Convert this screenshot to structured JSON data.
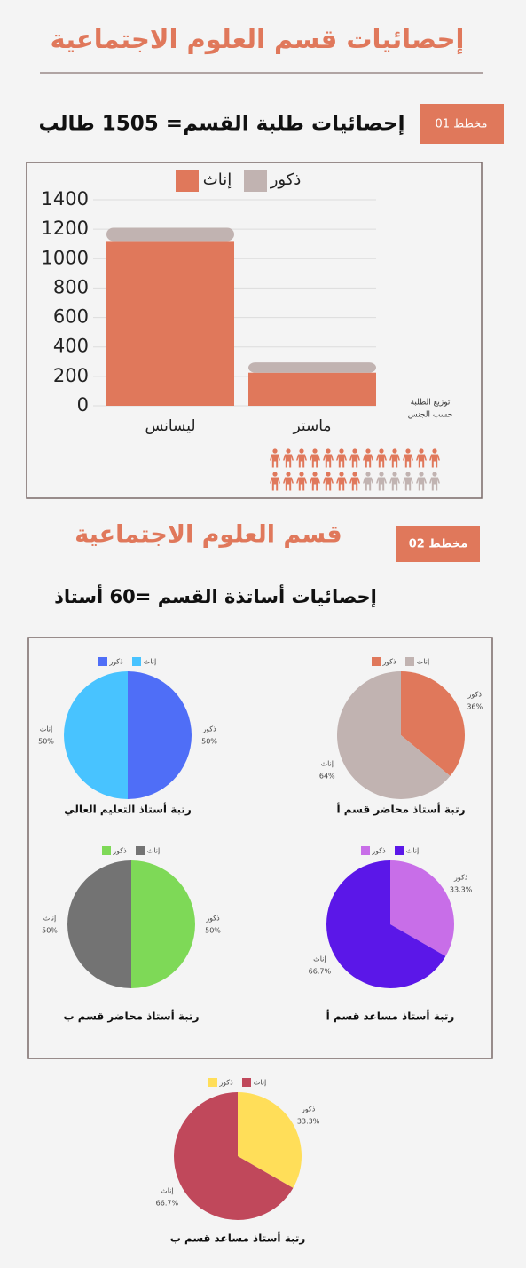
{
  "header": {
    "title": "إحصائيات قسم العلوم الاجتماعية"
  },
  "section1": {
    "badge": "مخطط 01",
    "heading": "إحصائيات طلبة القسم= 1505 طالب",
    "note": [
      "توزيع الطلبة",
      "حسب الجنس"
    ]
  },
  "section2": {
    "badge": "مخطط 02",
    "title": "قسم العلوم الاجتماعية",
    "heading": "إحصائيات أساتذة القسم =60 أستاذ"
  },
  "chart_data": [
    {
      "type": "bar",
      "stacked": true,
      "categories": [
        "ليسانس",
        "ماستر"
      ],
      "series": [
        {
          "name": "إناث",
          "color": "#e0785b",
          "values": [
            1120,
            225
          ]
        },
        {
          "name": "ذكور",
          "color": "#c1b3b1",
          "values": [
            90,
            70
          ]
        }
      ],
      "ylim": [
        0,
        1400
      ],
      "yticks": [
        0,
        200,
        400,
        600,
        800,
        1000,
        1200,
        1400
      ],
      "grid": true
    },
    {
      "type": "pie",
      "title": "رتبة أستاذ التعليم العالي",
      "categories": [
        "ذكور",
        "إناث"
      ],
      "values": [
        50,
        50
      ],
      "value_labels": [
        "50%",
        "50%"
      ],
      "colors": [
        "#4f6ef7",
        "#48c3ff"
      ]
    },
    {
      "type": "pie",
      "title": "رتبة أستاذ محاضر قسم أ",
      "categories": [
        "ذكور",
        "إناث"
      ],
      "values": [
        36,
        64
      ],
      "value_labels": [
        "36%",
        "64%"
      ],
      "colors": [
        "#e0785b",
        "#c1b3b1"
      ]
    },
    {
      "type": "pie",
      "title": "رتبة أستاذ محاضر قسم ب",
      "categories": [
        "ذكور",
        "إناث"
      ],
      "values": [
        50,
        50
      ],
      "value_labels": [
        "50%",
        "50%"
      ],
      "colors": [
        "#7ed957",
        "#737373"
      ]
    },
    {
      "type": "pie",
      "title": "رتبة أستاذ مساعد قسم أ",
      "categories": [
        "ذكور",
        "إناث"
      ],
      "values": [
        33.3,
        66.7
      ],
      "value_labels": [
        "33.3%",
        "66.7%"
      ],
      "colors": [
        "#c86ee8",
        "#5b17e8"
      ]
    },
    {
      "type": "pie",
      "title": "رتبة أستاذ مساعد قسم ب",
      "categories": [
        "ذكور",
        "إناث"
      ],
      "values": [
        33.3,
        66.7
      ],
      "value_labels": [
        "33.3%",
        "66.7%"
      ],
      "colors": [
        "#ffde59",
        "#c0485b"
      ]
    }
  ]
}
